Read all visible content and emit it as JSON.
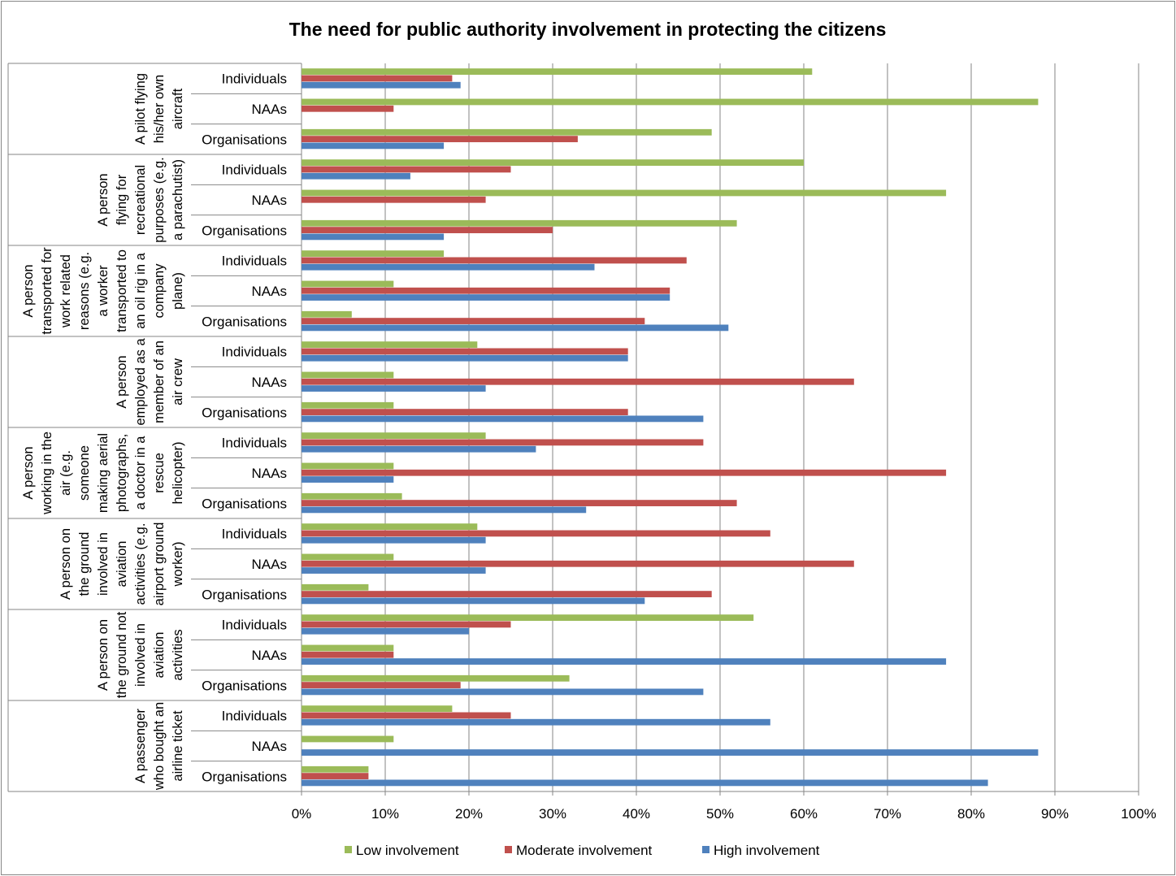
{
  "chart_data": {
    "type": "bar",
    "orientation": "horizontal",
    "title": "The need for public authority involvement in protecting the citizens",
    "xlim": [
      0,
      100
    ],
    "x_ticks": [
      "0%",
      "10%",
      "20%",
      "30%",
      "40%",
      "50%",
      "60%",
      "70%",
      "80%",
      "90%",
      "100%"
    ],
    "grid": "vertical",
    "legend_position": "bottom",
    "colors": {
      "low": "#9BBB59",
      "moderate": "#C0504D",
      "high": "#4F81BD"
    },
    "series_names": [
      "Low involvement",
      "Moderate involvement",
      "High involvement"
    ],
    "categories": [
      "Individuals",
      "NAAs",
      "Organisations"
    ],
    "groups": [
      {
        "label_lines": [
          "A pilot flying",
          "his/her own",
          "aircraft"
        ],
        "values": [
          [
            61,
            18,
            19
          ],
          [
            88,
            11,
            0
          ],
          [
            49,
            33,
            17
          ]
        ]
      },
      {
        "label_lines": [
          "A person",
          "flying for",
          "recreational",
          "purposes (e.g.",
          "a parachutist)"
        ],
        "values": [
          [
            60,
            25,
            13
          ],
          [
            77,
            22,
            0
          ],
          [
            52,
            30,
            17
          ]
        ]
      },
      {
        "label_lines": [
          "A person",
          "transported for",
          "work related",
          "reasons (e.g.",
          "a worker",
          "transported to",
          "an oil rig in a",
          "company",
          "plane)"
        ],
        "values": [
          [
            17,
            46,
            35
          ],
          [
            11,
            44,
            44
          ],
          [
            6,
            41,
            51
          ]
        ]
      },
      {
        "label_lines": [
          "A person",
          "employed as a",
          "member of an",
          "air crew"
        ],
        "values": [
          [
            21,
            39,
            39
          ],
          [
            11,
            66,
            22
          ],
          [
            11,
            39,
            48
          ]
        ]
      },
      {
        "label_lines": [
          "A person",
          "working in the",
          "air (e.g.",
          "someone",
          "making aerial",
          "photographs,",
          "a doctor in a",
          "rescue",
          "helicopter)"
        ],
        "values": [
          [
            22,
            48,
            28
          ],
          [
            11,
            77,
            11
          ],
          [
            12,
            52,
            34
          ]
        ]
      },
      {
        "label_lines": [
          "A person on",
          "the ground",
          "involved in",
          "aviation",
          "activities (e.g.",
          "airport ground",
          "worker)"
        ],
        "values": [
          [
            21,
            56,
            22
          ],
          [
            11,
            66,
            22
          ],
          [
            8,
            49,
            41
          ]
        ]
      },
      {
        "label_lines": [
          "A person on",
          "the ground not",
          "involved in",
          "aviation",
          "activities"
        ],
        "values": [
          [
            54,
            25,
            20
          ],
          [
            11,
            11,
            77
          ],
          [
            32,
            19,
            48
          ]
        ]
      },
      {
        "label_lines": [
          "A passenger",
          "who bought an",
          "airline ticket"
        ],
        "values": [
          [
            18,
            25,
            56
          ],
          [
            11,
            0,
            88
          ],
          [
            8,
            8,
            82
          ]
        ]
      }
    ]
  }
}
